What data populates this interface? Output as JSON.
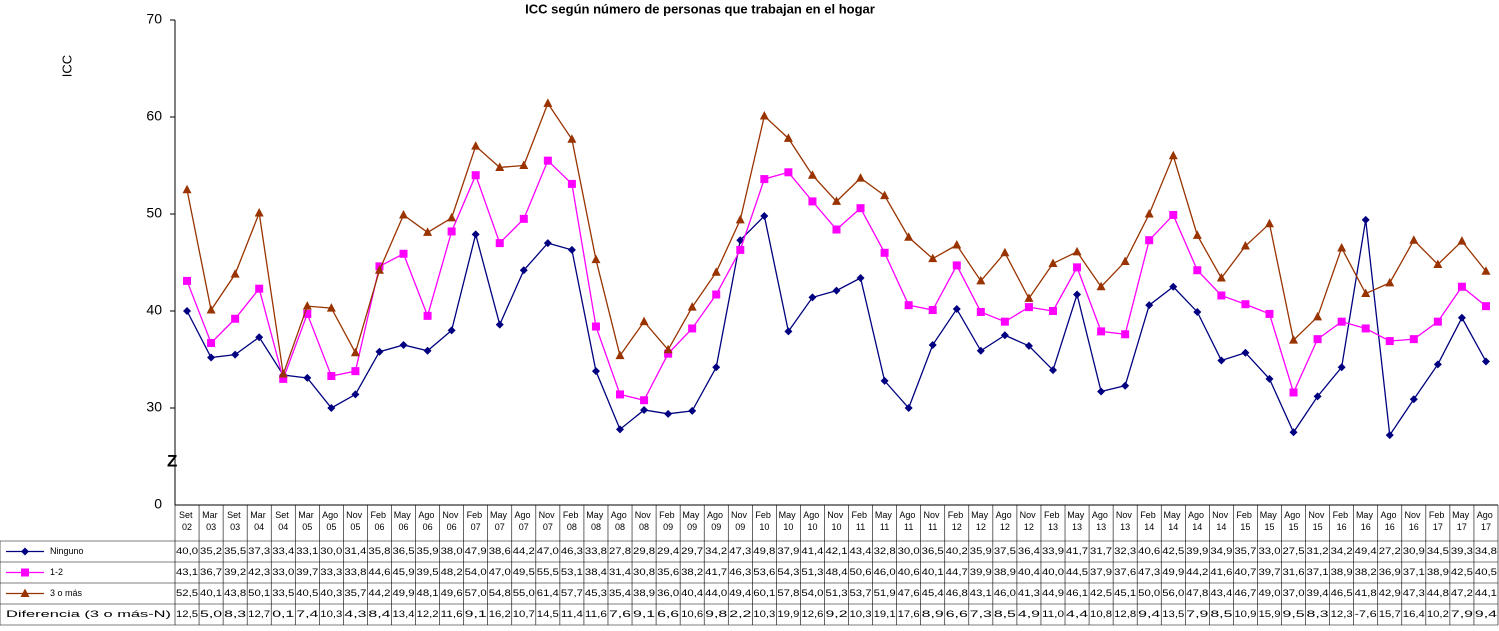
{
  "chart_data": {
    "type": "line",
    "title": "ICC según número de personas que trabajan en el hogar",
    "y_label": "ICC",
    "categories": [
      "Set 02",
      "Mar 03",
      "Set 03",
      "Mar 04",
      "Set 04",
      "Mar 05",
      "Ago 05",
      "Nov 05",
      "Feb 06",
      "May 06",
      "Ago 06",
      "Nov 06",
      "Feb 07",
      "May 07",
      "Ago 07",
      "Nov 07",
      "Feb 08",
      "May 08",
      "Ago 08",
      "Nov 08",
      "Feb 09",
      "May 09",
      "Ago 09",
      "Nov 09",
      "Feb 10",
      "May 10",
      "Ago 10",
      "Nov 10",
      "Feb 11",
      "May 11",
      "Ago 11",
      "Nov 11",
      "Feb 12",
      "May 12",
      "Ago 12",
      "Nov 12",
      "Feb 13",
      "May 13",
      "Ago 13",
      "Nov 13",
      "Feb 14",
      "May 14",
      "Ago 14",
      "Nov 14",
      "Feb 15",
      "May 15",
      "Ago 15",
      "Nov 15",
      "Feb 16",
      "May 16",
      "Ago 16",
      "Nov 16",
      "Feb 17",
      "May 17",
      "Ago 17"
    ],
    "series": [
      {
        "name": "Ninguno",
        "color": "#000080",
        "marker": "diamond",
        "values": [
          40.0,
          35.2,
          35.5,
          37.3,
          33.4,
          33.1,
          30.0,
          31.4,
          35.8,
          36.5,
          35.9,
          38.0,
          47.9,
          38.6,
          44.2,
          47.0,
          46.3,
          33.8,
          27.8,
          29.8,
          29.4,
          29.7,
          34.2,
          47.3,
          49.8,
          37.9,
          41.4,
          42.1,
          43.4,
          32.8,
          30.0,
          36.5,
          40.2,
          35.9,
          37.5,
          36.4,
          33.9,
          41.7,
          31.7,
          32.3,
          40.6,
          42.5,
          39.9,
          34.9,
          35.7,
          33.0,
          27.5,
          31.2,
          34.2,
          49.4,
          27.2,
          30.9,
          34.5,
          39.3,
          34.8
        ],
        "value_labels": [
          "40,0",
          "35,2",
          "35,5",
          "37,3",
          "33,4",
          "33,1",
          "30,0",
          "31,4",
          "35,8",
          "36,5",
          "35,9",
          "38,0",
          "47,9",
          "38,6",
          "44,2",
          "47,0",
          "46,3",
          "33,8",
          "27,8",
          "29,8",
          "29,4",
          "29,7",
          "34,2",
          "47,3",
          "49,8",
          "37,9",
          "41,4",
          "42,1",
          "43,4",
          "32,8",
          "30,0",
          "36,5",
          "40,2",
          "35,9",
          "37,5",
          "36,4",
          "33,9",
          "41,7",
          "31,7",
          "32,3",
          "40,6",
          "42,5",
          "39,9",
          "34,9",
          "35,7",
          "33,0",
          "27,5",
          "31,2",
          "34,2",
          "49,4",
          "27,2",
          "30,9",
          "34,5",
          "39,3",
          "34,8"
        ]
      },
      {
        "name": "1-2",
        "color": "#ff00ff",
        "marker": "square",
        "values": [
          43.1,
          36.7,
          39.2,
          42.3,
          33.0,
          39.7,
          33.3,
          33.8,
          44.6,
          45.9,
          39.5,
          48.2,
          54.0,
          47.0,
          49.5,
          55.5,
          53.1,
          38.4,
          31.4,
          30.8,
          35.6,
          38.2,
          41.7,
          46.3,
          53.6,
          54.3,
          51.3,
          48.4,
          50.6,
          46.0,
          40.6,
          40.1,
          44.7,
          39.9,
          38.9,
          40.4,
          40.0,
          44.5,
          37.9,
          37.6,
          47.3,
          49.9,
          44.2,
          41.6,
          40.7,
          39.7,
          31.6,
          37.1,
          38.9,
          38.2,
          36.9,
          37.1,
          38.9,
          42.5,
          40.5
        ],
        "value_labels": [
          "43,1",
          "36,7",
          "39,2",
          "42,3",
          "33,0",
          "39,7",
          "33,3",
          "33,8",
          "44,6",
          "45,9",
          "39,5",
          "48,2",
          "54,0",
          "47,0",
          "49,5",
          "55,5",
          "53,1",
          "38,4",
          "31,4",
          "30,8",
          "35,6",
          "38,2",
          "41,7",
          "46,3",
          "53,6",
          "54,3",
          "51,3",
          "48,4",
          "50,6",
          "46,0",
          "40,6",
          "40,1",
          "44,7",
          "39,9",
          "38,9",
          "40,4",
          "40,0",
          "44,5",
          "37,9",
          "37,6",
          "47,3",
          "49,9",
          "44,2",
          "41,6",
          "40,7",
          "39,7",
          "31,6",
          "37,1",
          "38,9",
          "38,2",
          "36,9",
          "37,1",
          "38,9",
          "42,5",
          "40,5"
        ]
      },
      {
        "name": "3 o más",
        "color": "#993300",
        "marker": "triangle",
        "values": [
          52.5,
          40.1,
          43.8,
          50.1,
          33.5,
          40.5,
          40.3,
          35.7,
          44.2,
          49.9,
          48.1,
          49.6,
          57.0,
          54.8,
          55.0,
          61.4,
          57.7,
          45.3,
          35.4,
          38.9,
          36.0,
          40.4,
          44.0,
          49.4,
          60.1,
          57.8,
          54.0,
          51.3,
          53.7,
          51.9,
          47.6,
          45.4,
          46.8,
          43.1,
          46.0,
          41.3,
          44.9,
          46.1,
          42.5,
          45.1,
          50.0,
          56.0,
          47.8,
          43.4,
          46.7,
          49.0,
          37.0,
          39.4,
          46.5,
          41.8,
          42.9,
          47.3,
          44.8,
          47.2,
          44.1
        ],
        "value_labels": [
          "52,5",
          "40,1",
          "43,8",
          "50,1",
          "33,5",
          "40,5",
          "40,3",
          "35,7",
          "44,2",
          "49,9",
          "48,1",
          "49,6",
          "57,0",
          "54,8",
          "55,0",
          "61,4",
          "57,7",
          "45,3",
          "35,4",
          "38,9",
          "36,0",
          "40,4",
          "44,0",
          "49,4",
          "60,1",
          "57,8",
          "54,0",
          "51,3",
          "53,7",
          "51,9",
          "47,6",
          "45,4",
          "46,8",
          "43,1",
          "46,0",
          "41,3",
          "44,9",
          "46,1",
          "42,5",
          "45,1",
          "50,0",
          "56,0",
          "47,8",
          "43,4",
          "46,7",
          "49,0",
          "37,0",
          "39,4",
          "46,5",
          "41,8",
          "42,9",
          "47,3",
          "44,8",
          "47,2",
          "44,1"
        ]
      }
    ],
    "table_rows": [
      {
        "name": "Diferencia (3 o más-N)",
        "values": [
          12.5,
          5.0,
          8.3,
          12.7,
          0.1,
          7.4,
          10.3,
          4.3,
          8.4,
          13.4,
          12.2,
          11.6,
          9.1,
          16.2,
          10.7,
          14.5,
          11.4,
          11.6,
          7.6,
          9.1,
          6.6,
          10.6,
          9.8,
          2.2,
          10.3,
          19.9,
          12.6,
          9.2,
          10.3,
          19.1,
          17.6,
          8.9,
          6.6,
          7.3,
          8.5,
          4.9,
          11.0,
          4.4,
          10.8,
          12.8,
          9.4,
          13.5,
          7.9,
          8.5,
          10.9,
          15.9,
          9.5,
          8.3,
          12.3,
          -7.6,
          15.7,
          16.4,
          10.2,
          7.9,
          9.4
        ],
        "value_labels": [
          "12,5",
          "5,0",
          "8,3",
          "12,7",
          "0,1",
          "7,4",
          "10,3",
          "4,3",
          "8,4",
          "13,4",
          "12,2",
          "11,6",
          "9,1",
          "16,2",
          "10,7",
          "14,5",
          "11,4",
          "11,6",
          "7,6",
          "9,1",
          "6,6",
          "10,6",
          "9,8",
          "2,2",
          "10,3",
          "19,9",
          "12,6",
          "9,2",
          "10,3",
          "19,1",
          "17,6",
          "8,9",
          "6,6",
          "7,3",
          "8,5",
          "4,9",
          "11,0",
          "4,4",
          "10,8",
          "12,8",
          "9,4",
          "13,5",
          "7,9",
          "8,5",
          "10,9",
          "15,9",
          "9,5",
          "8,3",
          "12,3",
          "-7,6",
          "15,7",
          "16,4",
          "10,2",
          "7,9",
          "9,4"
        ]
      }
    ],
    "ylim": [
      20,
      70
    ],
    "yticks": [
      30,
      40,
      50,
      60,
      70
    ],
    "axis_break": {
      "label": "0",
      "mark": "Z"
    }
  }
}
